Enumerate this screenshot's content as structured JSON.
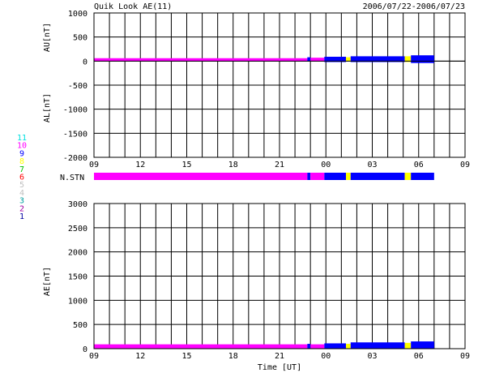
{
  "header": {
    "title": "Quik Look AE(11)",
    "date_range": "2006/07/22-2006/07/23"
  },
  "labels": {
    "nstn": "N.STN",
    "time_axis": "Time [UT]"
  },
  "station_legend": [
    {
      "label": "11",
      "color": "#00e0e0"
    },
    {
      "label": "10",
      "color": "#ff00ff"
    },
    {
      "label": "9",
      "color": "#0000ff"
    },
    {
      "label": "8",
      "color": "#ffff00"
    },
    {
      "label": "7",
      "color": "#00c000"
    },
    {
      "label": "6",
      "color": "#ff0000"
    },
    {
      "label": "5",
      "color": "#c0c0c0"
    },
    {
      "label": "4",
      "color": "#c0c0c0"
    },
    {
      "label": "3",
      "color": "#00a0a0"
    },
    {
      "label": "2",
      "color": "#a000a0"
    },
    {
      "label": "1",
      "color": "#0000a0"
    }
  ],
  "chart_data": [
    {
      "type": "area",
      "title": "",
      "ylabel_upper": "AU[nT]",
      "ylabel_lower": "AL[nT]",
      "ylim": [
        -2000,
        1000
      ],
      "yticks": [
        "1000",
        "500",
        "0",
        "-500",
        "-1000",
        "-1500",
        "-2000"
      ],
      "xtick_labels": [
        "09",
        "12",
        "15",
        "18",
        "21",
        "00",
        "03",
        "06",
        "09"
      ],
      "x_range_hours": [
        9,
        33
      ],
      "grid": true,
      "segments": [
        {
          "start": 9,
          "end": 22.8,
          "color": "#ff00ff",
          "au": 60,
          "al": -10
        },
        {
          "start": 22.8,
          "end": 23.0,
          "color": "#0000ff",
          "au": 80,
          "al": -10
        },
        {
          "start": 23.0,
          "end": 23.9,
          "color": "#ff00ff",
          "au": 70,
          "al": -10
        },
        {
          "start": 23.9,
          "end": 25.3,
          "color": "#0000ff",
          "au": 90,
          "al": -20
        },
        {
          "start": 25.3,
          "end": 25.6,
          "color": "#ffff00",
          "au": 80,
          "al": -10
        },
        {
          "start": 25.6,
          "end": 29.1,
          "color": "#0000ff",
          "au": 100,
          "al": -20
        },
        {
          "start": 29.1,
          "end": 29.5,
          "color": "#ffff00",
          "au": 100,
          "al": -20
        },
        {
          "start": 29.5,
          "end": 31.0,
          "color": "#0000ff",
          "au": 120,
          "al": -40
        }
      ]
    },
    {
      "type": "area",
      "title": "",
      "ylabel": "AE[nT]",
      "xlabel": "Time [UT]",
      "ylim": [
        0,
        3000
      ],
      "yticks": [
        "3000",
        "2500",
        "2000",
        "1500",
        "1000",
        "500",
        "0"
      ],
      "xtick_labels": [
        "09",
        "12",
        "15",
        "18",
        "21",
        "00",
        "03",
        "06",
        "09"
      ],
      "x_range_hours": [
        9,
        33
      ],
      "grid": true,
      "segments": [
        {
          "start": 9,
          "end": 22.8,
          "color": "#ff00ff",
          "ae": 90
        },
        {
          "start": 22.8,
          "end": 23.0,
          "color": "#0000ff",
          "ae": 100
        },
        {
          "start": 23.0,
          "end": 23.9,
          "color": "#ff00ff",
          "ae": 90
        },
        {
          "start": 23.9,
          "end": 25.3,
          "color": "#0000ff",
          "ae": 110
        },
        {
          "start": 25.3,
          "end": 25.6,
          "color": "#ffff00",
          "ae": 100
        },
        {
          "start": 25.6,
          "end": 29.1,
          "color": "#0000ff",
          "ae": 130
        },
        {
          "start": 29.1,
          "end": 29.5,
          "color": "#ffff00",
          "ae": 120
        },
        {
          "start": 29.5,
          "end": 31.0,
          "color": "#0000ff",
          "ae": 150
        }
      ]
    }
  ],
  "nstn_bar": [
    {
      "start": 9,
      "end": 22.8,
      "color": "#ff00ff"
    },
    {
      "start": 22.8,
      "end": 23.0,
      "color": "#0000ff"
    },
    {
      "start": 23.0,
      "end": 23.9,
      "color": "#ff00ff"
    },
    {
      "start": 23.9,
      "end": 25.3,
      "color": "#0000ff"
    },
    {
      "start": 25.3,
      "end": 25.6,
      "color": "#ffff00"
    },
    {
      "start": 25.6,
      "end": 29.1,
      "color": "#0000ff"
    },
    {
      "start": 29.1,
      "end": 29.5,
      "color": "#ffff00"
    },
    {
      "start": 29.5,
      "end": 31.0,
      "color": "#0000ff"
    }
  ]
}
